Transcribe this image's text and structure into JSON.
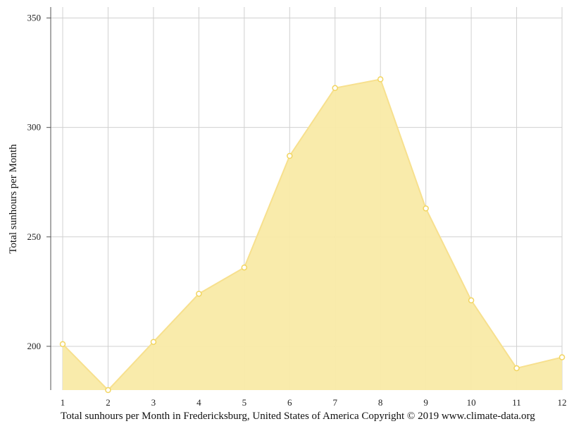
{
  "chart_data": {
    "type": "area",
    "x": [
      1,
      2,
      3,
      4,
      5,
      6,
      7,
      8,
      9,
      10,
      11,
      12
    ],
    "y": [
      201,
      180,
      202,
      224,
      236,
      287,
      318,
      322,
      263,
      221,
      190,
      195
    ],
    "xlabel": "",
    "ylabel": "Total sunhours per Month",
    "xlim": [
      1,
      12
    ],
    "ylim": [
      180,
      355
    ],
    "yticks": [
      200,
      250,
      300,
      350
    ],
    "xticks": [
      1,
      2,
      3,
      4,
      5,
      6,
      7,
      8,
      9,
      10,
      11,
      12
    ],
    "grid": true,
    "legend": "none",
    "fill_color": "#f9eaa6",
    "line_color": "#f7e08e",
    "point_color": "#f2d560",
    "grid_color": "#d0d0d0",
    "axis_color": "#555555"
  },
  "caption": "Total sunhours per Month in Fredericksburg, United States of America Copyright © 2019 www.climate-data.org"
}
